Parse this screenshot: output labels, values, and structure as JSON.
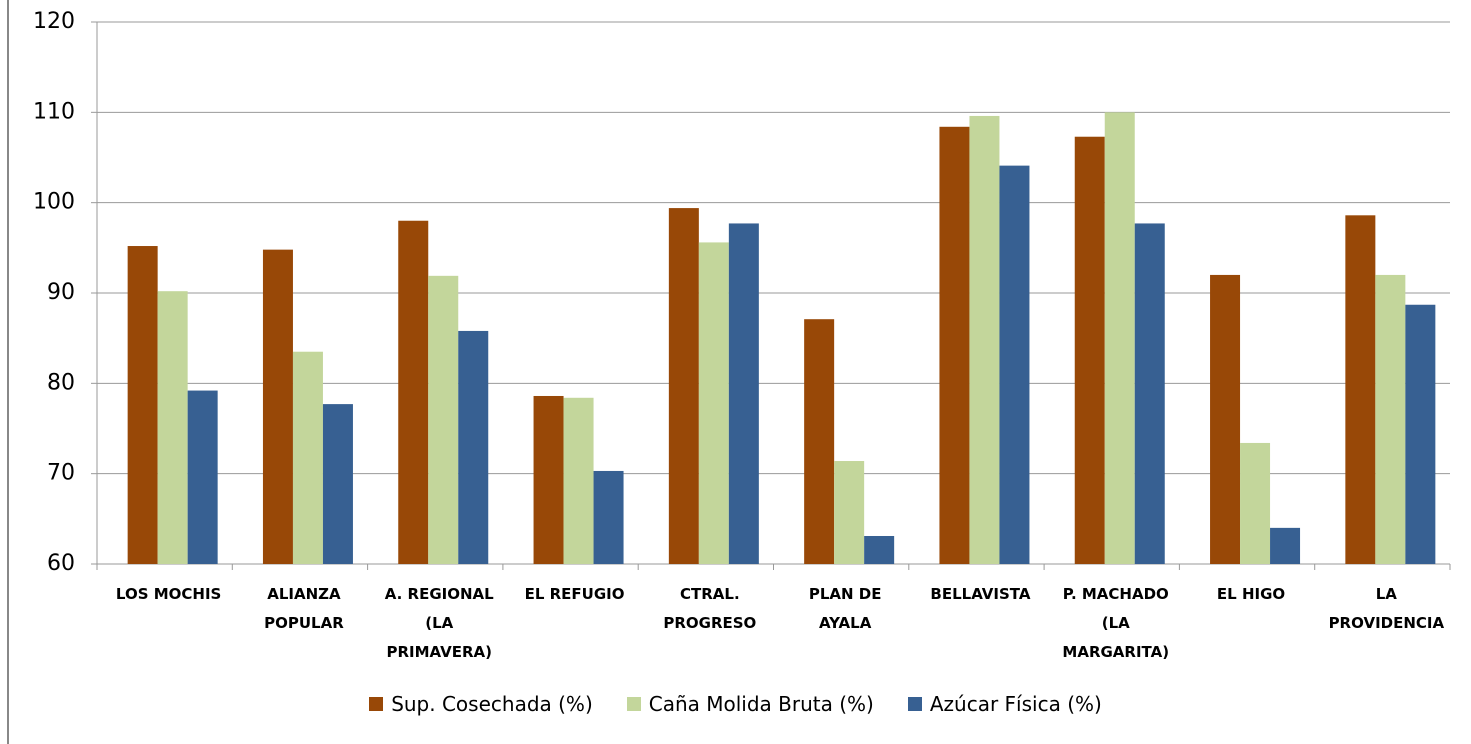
{
  "chart_data": {
    "type": "bar",
    "categories": [
      "LOS MOCHIS",
      "ALIANZA POPULAR",
      "A. REGIONAL (LA PRIMAVERA)",
      "EL REFUGIO",
      "CTRAL. PROGRESO",
      "PLAN DE AYALA",
      "BELLAVISTA",
      "P. MACHADO (LA MARGARITA)",
      "EL HIGO",
      "LA PROVIDENCIA"
    ],
    "series": [
      {
        "name": "Sup. Cosechada (%)",
        "color": "#984807",
        "values": [
          95.2,
          94.8,
          98.0,
          78.6,
          99.4,
          87.1,
          108.4,
          107.3,
          92.0,
          98.6
        ]
      },
      {
        "name": "Caña Molida Bruta (%)",
        "color": "#c3d69b",
        "values": [
          90.2,
          83.5,
          91.9,
          78.4,
          95.6,
          71.4,
          109.6,
          110.0,
          73.4,
          92.0
        ]
      },
      {
        "name": "Azúcar Física (%)",
        "color": "#376092",
        "values": [
          79.2,
          77.7,
          85.8,
          70.3,
          97.7,
          63.1,
          104.1,
          97.7,
          64.0,
          88.7
        ]
      }
    ],
    "ylim": [
      60,
      120
    ],
    "yticks": [
      60,
      70,
      80,
      90,
      100,
      110,
      120
    ],
    "grid": true,
    "legend": "bottom"
  }
}
